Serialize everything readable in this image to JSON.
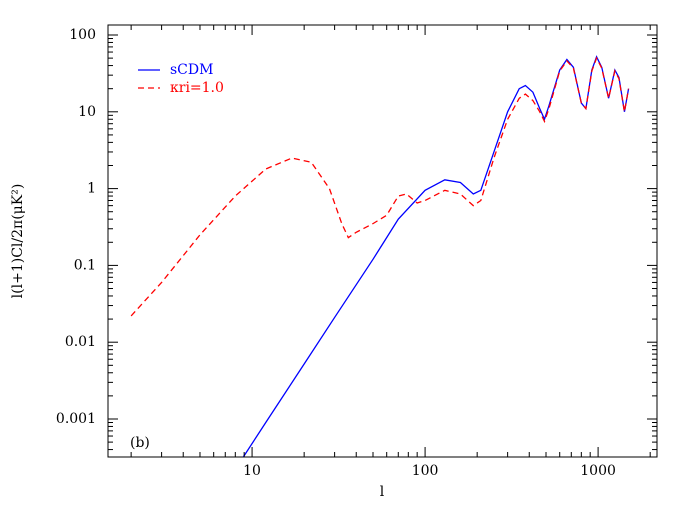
{
  "chart_data": {
    "type": "line",
    "x_label": "l",
    "y_label": "l(l+1)Cl/2π(μK²)",
    "annotation": "(b)",
    "xscale": "log",
    "yscale": "log",
    "xlim": [
      1.47,
      2190
    ],
    "ylim": [
      0.00032,
      135
    ],
    "xticks": [
      10,
      100,
      1000
    ],
    "yticks": [
      0.001,
      0.01,
      0.1,
      1,
      10,
      100
    ],
    "legend": "upper left",
    "series": [
      {
        "name": "sCDM",
        "color": "#0000ff",
        "dash": false,
        "x": [
          8.9,
          12,
          20,
          30,
          50,
          70,
          100,
          130,
          160,
          190,
          210,
          250,
          300,
          350,
          380,
          420,
          460,
          490,
          520,
          600,
          660,
          720,
          800,
          850,
          920,
          980,
          1050,
          1150,
          1250,
          1320,
          1420,
          1500
        ],
        "values": [
          0.00032,
          0.0009,
          0.0052,
          0.021,
          0.12,
          0.4,
          0.95,
          1.3,
          1.2,
          0.85,
          0.95,
          3,
          10,
          20,
          22,
          18,
          11,
          8,
          12,
          35,
          48,
          38,
          13,
          11,
          35,
          52,
          38,
          15,
          35,
          28,
          10,
          20
        ]
      },
      {
        "name": "κri=1.0",
        "color": "#ff0000",
        "dash": true,
        "x": [
          2,
          3,
          5,
          8,
          12,
          17,
          22,
          28,
          33,
          36,
          40,
          50,
          60,
          70,
          78,
          90,
          100,
          130,
          160,
          190,
          210,
          250,
          300,
          350,
          380,
          420,
          460,
          490,
          520,
          600,
          660,
          720,
          800,
          850,
          920,
          980,
          1050,
          1150,
          1250,
          1320,
          1420,
          1500
        ],
        "values": [
          0.022,
          0.06,
          0.25,
          0.8,
          1.8,
          2.5,
          2.2,
          1.0,
          0.35,
          0.23,
          0.27,
          0.35,
          0.45,
          0.8,
          0.85,
          0.65,
          0.7,
          0.95,
          0.85,
          0.6,
          0.7,
          2.5,
          8,
          15,
          17,
          14,
          10,
          7.5,
          11,
          34,
          46,
          37,
          13,
          11,
          34,
          50,
          37,
          15,
          34,
          27,
          10,
          20
        ]
      }
    ]
  }
}
